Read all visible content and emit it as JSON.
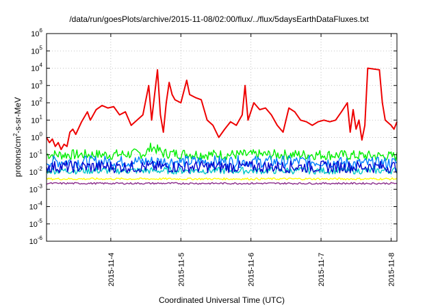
{
  "chart_data": {
    "type": "line",
    "title": "/data/run/goesPlots/archive/2015-11-08/02:00/flux/../flux/5daysEarthDataFluxes.txt",
    "xlabel": "Coordinated Universal Time (UTC)",
    "ylabel": {
      "pre": "protons/cm",
      "sup": "2",
      "post": "-s-sr-MeV"
    },
    "y_scale": "log",
    "ylim": [
      1e-06,
      1000000.0
    ],
    "xlim": [
      "2015-11-03T02:00",
      "2015-11-08T02:00"
    ],
    "grid": true,
    "y_ticks": [
      {
        "value": 1e-06,
        "base": "10",
        "exp": "-6"
      },
      {
        "value": 1e-05,
        "base": "10",
        "exp": "-5"
      },
      {
        "value": 0.0001,
        "base": "10",
        "exp": "-4"
      },
      {
        "value": 0.001,
        "base": "10",
        "exp": "-3"
      },
      {
        "value": 0.01,
        "base": "10",
        "exp": "-2"
      },
      {
        "value": 0.1,
        "base": "10",
        "exp": "-1"
      },
      {
        "value": 1,
        "base": "10",
        "exp": "0"
      },
      {
        "value": 10,
        "base": "10",
        "exp": "1"
      },
      {
        "value": 100,
        "base": "10",
        "exp": "2"
      },
      {
        "value": 1000,
        "base": "10",
        "exp": "3"
      },
      {
        "value": 10000,
        "base": "10",
        "exp": "4"
      },
      {
        "value": 100000,
        "base": "10",
        "exp": "5"
      },
      {
        "value": 1000000,
        "base": "10",
        "exp": "6"
      }
    ],
    "x_ticks": [
      {
        "value": "2015-11-04T00:00",
        "label": "2015-11-4"
      },
      {
        "value": "2015-11-05T00:00",
        "label": "2015-11-5"
      },
      {
        "value": "2015-11-06T00:00",
        "label": "2015-11-6"
      },
      {
        "value": "2015-11-07T00:00",
        "label": "2015-11-7"
      },
      {
        "value": "2015-11-08T00:00",
        "label": "2015-11-8"
      }
    ],
    "series": [
      {
        "color": "#00ee00",
        "kind": "band",
        "center": 0.1,
        "spread": 0.3,
        "points": [
          [
            "2015-11-03T02:00",
            0.1
          ],
          [
            "2015-11-04T00:00",
            0.1
          ],
          [
            "2015-11-04T12:00",
            0.12
          ],
          [
            "2015-11-04T14:00",
            0.3
          ],
          [
            "2015-11-04T18:00",
            0.12
          ],
          [
            "2015-11-05T12:00",
            0.1
          ],
          [
            "2015-11-06T12:00",
            0.1
          ],
          [
            "2015-11-07T00:00",
            0.1
          ],
          [
            "2015-11-07T12:00",
            0.09
          ],
          [
            "2015-11-08T02:00",
            0.08
          ]
        ]
      },
      {
        "color": "#0080ff",
        "kind": "band",
        "center": 0.04,
        "spread": 0.35,
        "points": [
          [
            "2015-11-03T02:00",
            0.04
          ],
          [
            "2015-11-05T00:00",
            0.04
          ],
          [
            "2015-11-06T00:00",
            0.04
          ],
          [
            "2015-11-07T00:00",
            0.04
          ],
          [
            "2015-11-07T12:00",
            0.03
          ],
          [
            "2015-11-08T02:00",
            0.035
          ]
        ]
      },
      {
        "color": "#00c8c8",
        "kind": "band",
        "center": 0.012,
        "spread": 0.2,
        "points": [
          [
            "2015-11-03T02:00",
            0.012
          ],
          [
            "2015-11-05T00:00",
            0.012
          ],
          [
            "2015-11-06T00:00",
            0.012
          ],
          [
            "2015-11-07T00:00",
            0.012
          ],
          [
            "2015-11-08T02:00",
            0.012
          ]
        ]
      },
      {
        "color": "#0000cc",
        "kind": "band",
        "center": 0.02,
        "spread": 0.35,
        "points": [
          [
            "2015-11-03T02:00",
            0.02
          ],
          [
            "2015-11-05T00:00",
            0.02
          ],
          [
            "2015-11-06T00:00",
            0.02
          ],
          [
            "2015-11-07T00:00",
            0.02
          ],
          [
            "2015-11-08T02:00",
            0.02
          ]
        ]
      },
      {
        "color": "#ffff00",
        "kind": "band",
        "center": 0.004,
        "spread": 0.06,
        "points": [
          [
            "2015-11-03T02:00",
            0.004
          ],
          [
            "2015-11-05T00:00",
            0.004
          ],
          [
            "2015-11-06T00:00",
            0.004
          ],
          [
            "2015-11-07T00:00",
            0.004
          ],
          [
            "2015-11-08T02:00",
            0.004
          ]
        ]
      },
      {
        "color": "#8b2c8b",
        "kind": "band",
        "center": 0.0022,
        "spread": 0.05,
        "points": [
          [
            "2015-11-03T02:00",
            0.0022
          ],
          [
            "2015-11-05T00:00",
            0.0022
          ],
          [
            "2015-11-06T00:00",
            0.0022
          ],
          [
            "2015-11-07T00:00",
            0.0022
          ],
          [
            "2015-11-08T02:00",
            0.0022
          ]
        ]
      },
      {
        "color": "#ee0000",
        "kind": "line",
        "points": [
          [
            "2015-11-03T02:00",
            1.0
          ],
          [
            "2015-11-03T03:00",
            0.5
          ],
          [
            "2015-11-03T04:00",
            0.8
          ],
          [
            "2015-11-03T05:00",
            0.3
          ],
          [
            "2015-11-03T06:00",
            0.5
          ],
          [
            "2015-11-03T07:00",
            0.2
          ],
          [
            "2015-11-03T08:00",
            0.4
          ],
          [
            "2015-11-03T09:00",
            0.3
          ],
          [
            "2015-11-03T10:00",
            2.0
          ],
          [
            "2015-11-03T11:00",
            3.0
          ],
          [
            "2015-11-03T12:00",
            1.5
          ],
          [
            "2015-11-03T14:00",
            8.0
          ],
          [
            "2015-11-03T16:00",
            30.0
          ],
          [
            "2015-11-03T17:00",
            10.0
          ],
          [
            "2015-11-03T19:00",
            40.0
          ],
          [
            "2015-11-03T21:00",
            70.0
          ],
          [
            "2015-11-03T23:00",
            50.0
          ],
          [
            "2015-11-04T01:00",
            60.0
          ],
          [
            "2015-11-04T03:00",
            20.0
          ],
          [
            "2015-11-04T05:00",
            30.0
          ],
          [
            "2015-11-04T07:00",
            5.0
          ],
          [
            "2015-11-04T09:00",
            10.0
          ],
          [
            "2015-11-04T11:00",
            20.0
          ],
          [
            "2015-11-04T13:00",
            1000.0
          ],
          [
            "2015-11-04T14:00",
            10.0
          ],
          [
            "2015-11-04T15:00",
            300.0
          ],
          [
            "2015-11-04T16:00",
            8000.0
          ],
          [
            "2015-11-04T17:00",
            20.0
          ],
          [
            "2015-11-04T18:00",
            2.0
          ],
          [
            "2015-11-04T19:00",
            100.0
          ],
          [
            "2015-11-04T20:00",
            1500.0
          ],
          [
            "2015-11-04T21:00",
            300.0
          ],
          [
            "2015-11-04T22:00",
            150.0
          ],
          [
            "2015-11-05T00:00",
            100.0
          ],
          [
            "2015-11-05T02:00",
            2000.0
          ],
          [
            "2015-11-05T03:00",
            300.0
          ],
          [
            "2015-11-05T05:00",
            200.0
          ],
          [
            "2015-11-05T07:00",
            150.0
          ],
          [
            "2015-11-05T09:00",
            10.0
          ],
          [
            "2015-11-05T11:00",
            5.0
          ],
          [
            "2015-11-05T13:00",
            1.0
          ],
          [
            "2015-11-05T15:00",
            3.0
          ],
          [
            "2015-11-05T17:00",
            8.0
          ],
          [
            "2015-11-05T19:00",
            5.0
          ],
          [
            "2015-11-05T21:00",
            20.0
          ],
          [
            "2015-11-05T22:00",
            1000.0
          ],
          [
            "2015-11-05T23:00",
            10.0
          ],
          [
            "2015-11-06T01:00",
            100.0
          ],
          [
            "2015-11-06T03:00",
            40.0
          ],
          [
            "2015-11-06T05:00",
            50.0
          ],
          [
            "2015-11-06T07:00",
            20.0
          ],
          [
            "2015-11-06T09:00",
            5.0
          ],
          [
            "2015-11-06T11:00",
            2.0
          ],
          [
            "2015-11-06T13:00",
            50.0
          ],
          [
            "2015-11-06T15:00",
            30.0
          ],
          [
            "2015-11-06T17:00",
            10.0
          ],
          [
            "2015-11-06T19:00",
            8.0
          ],
          [
            "2015-11-06T21:00",
            5.0
          ],
          [
            "2015-11-06T23:00",
            8.0
          ],
          [
            "2015-11-07T01:00",
            10.0
          ],
          [
            "2015-11-07T03:00",
            8.0
          ],
          [
            "2015-11-07T05:00",
            10.0
          ],
          [
            "2015-11-07T07:00",
            30.0
          ],
          [
            "2015-11-07T09:00",
            100.0
          ],
          [
            "2015-11-07T10:00",
            2.0
          ],
          [
            "2015-11-07T11:00",
            40.0
          ],
          [
            "2015-11-07T12:00",
            3.0
          ],
          [
            "2015-11-07T13:00",
            10.0
          ],
          [
            "2015-11-07T14:00",
            0.7
          ],
          [
            "2015-11-07T15:00",
            5.0
          ],
          [
            "2015-11-07T16:00",
            10000.0
          ],
          [
            "2015-11-07T20:00",
            8000.0
          ],
          [
            "2015-11-07T21:00",
            100.0
          ],
          [
            "2015-11-07T22:00",
            10.0
          ],
          [
            "2015-11-08T00:00",
            5.0
          ],
          [
            "2015-11-08T01:00",
            3.0
          ],
          [
            "2015-11-08T02:00",
            8.0
          ]
        ]
      }
    ]
  }
}
